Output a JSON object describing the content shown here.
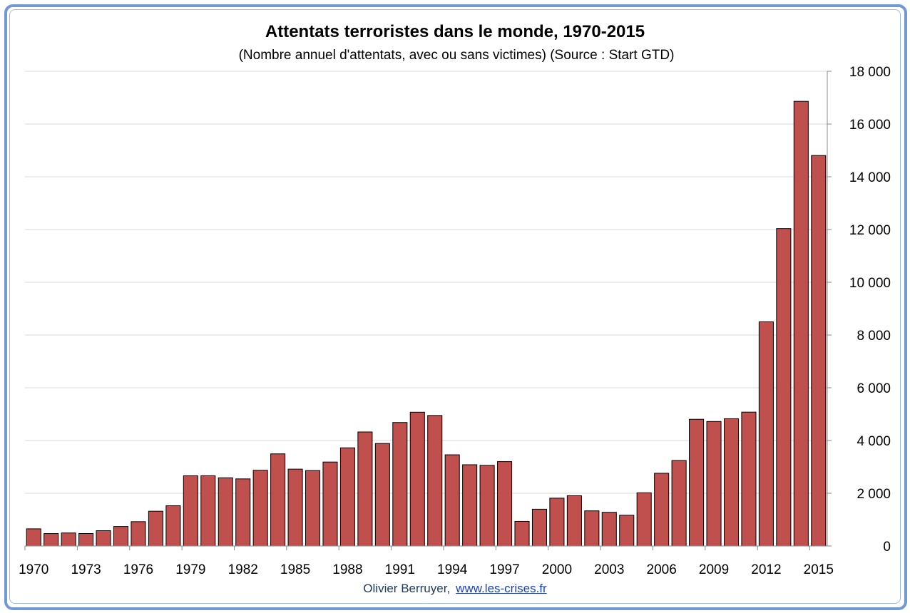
{
  "chart_data": {
    "type": "bar",
    "title": "Attentats terroristes dans le monde, 1970-2015",
    "subtitle": "(Nombre annuel d'attentats, avec ou sans victimes) (Source : Start GTD)",
    "categories": [
      "1970",
      "1971",
      "1972",
      "1973",
      "1974",
      "1975",
      "1976",
      "1977",
      "1978",
      "1979",
      "1980",
      "1981",
      "1982",
      "1983",
      "1984",
      "1985",
      "1986",
      "1987",
      "1988",
      "1989",
      "1990",
      "1991",
      "1992",
      "1993",
      "1994",
      "1995",
      "1996",
      "1997",
      "1998",
      "1999",
      "2000",
      "2001",
      "2002",
      "2003",
      "2004",
      "2005",
      "2006",
      "2007",
      "2008",
      "2009",
      "2010",
      "2011",
      "2012",
      "2013",
      "2014",
      "2015"
    ],
    "values": [
      651,
      471,
      494,
      473,
      581,
      740,
      923,
      1319,
      1526,
      2661,
      2663,
      2586,
      2545,
      2871,
      3494,
      2915,
      2861,
      3184,
      3722,
      4324,
      3887,
      4683,
      5073,
      4950,
      3458,
      3081,
      3058,
      3200,
      934,
      1395,
      1814,
      1906,
      1333,
      1278,
      1166,
      2017,
      2758,
      3242,
      4805,
      4721,
      4826,
      5076,
      8500,
      12036,
      16860,
      14806
    ],
    "xtick_labels": [
      "1970",
      "1973",
      "1976",
      "1979",
      "1982",
      "1985",
      "1988",
      "1991",
      "1994",
      "1997",
      "2000",
      "2003",
      "2006",
      "2009",
      "2012",
      "2015"
    ],
    "ytick_labels": [
      "0",
      "2 000",
      "4 000",
      "6 000",
      "8 000",
      "10 000",
      "12 000",
      "14 000",
      "16 000",
      "18 000"
    ],
    "ylim": [
      0,
      18000
    ],
    "yaxis_side": "right",
    "grid": true,
    "bar_color": "#c0504d",
    "bar_edge_color": "#000000",
    "xlabel": "",
    "ylabel": ""
  },
  "footer": {
    "author": "Olivier Berruyer,",
    "link": "www.les-crises.fr"
  }
}
